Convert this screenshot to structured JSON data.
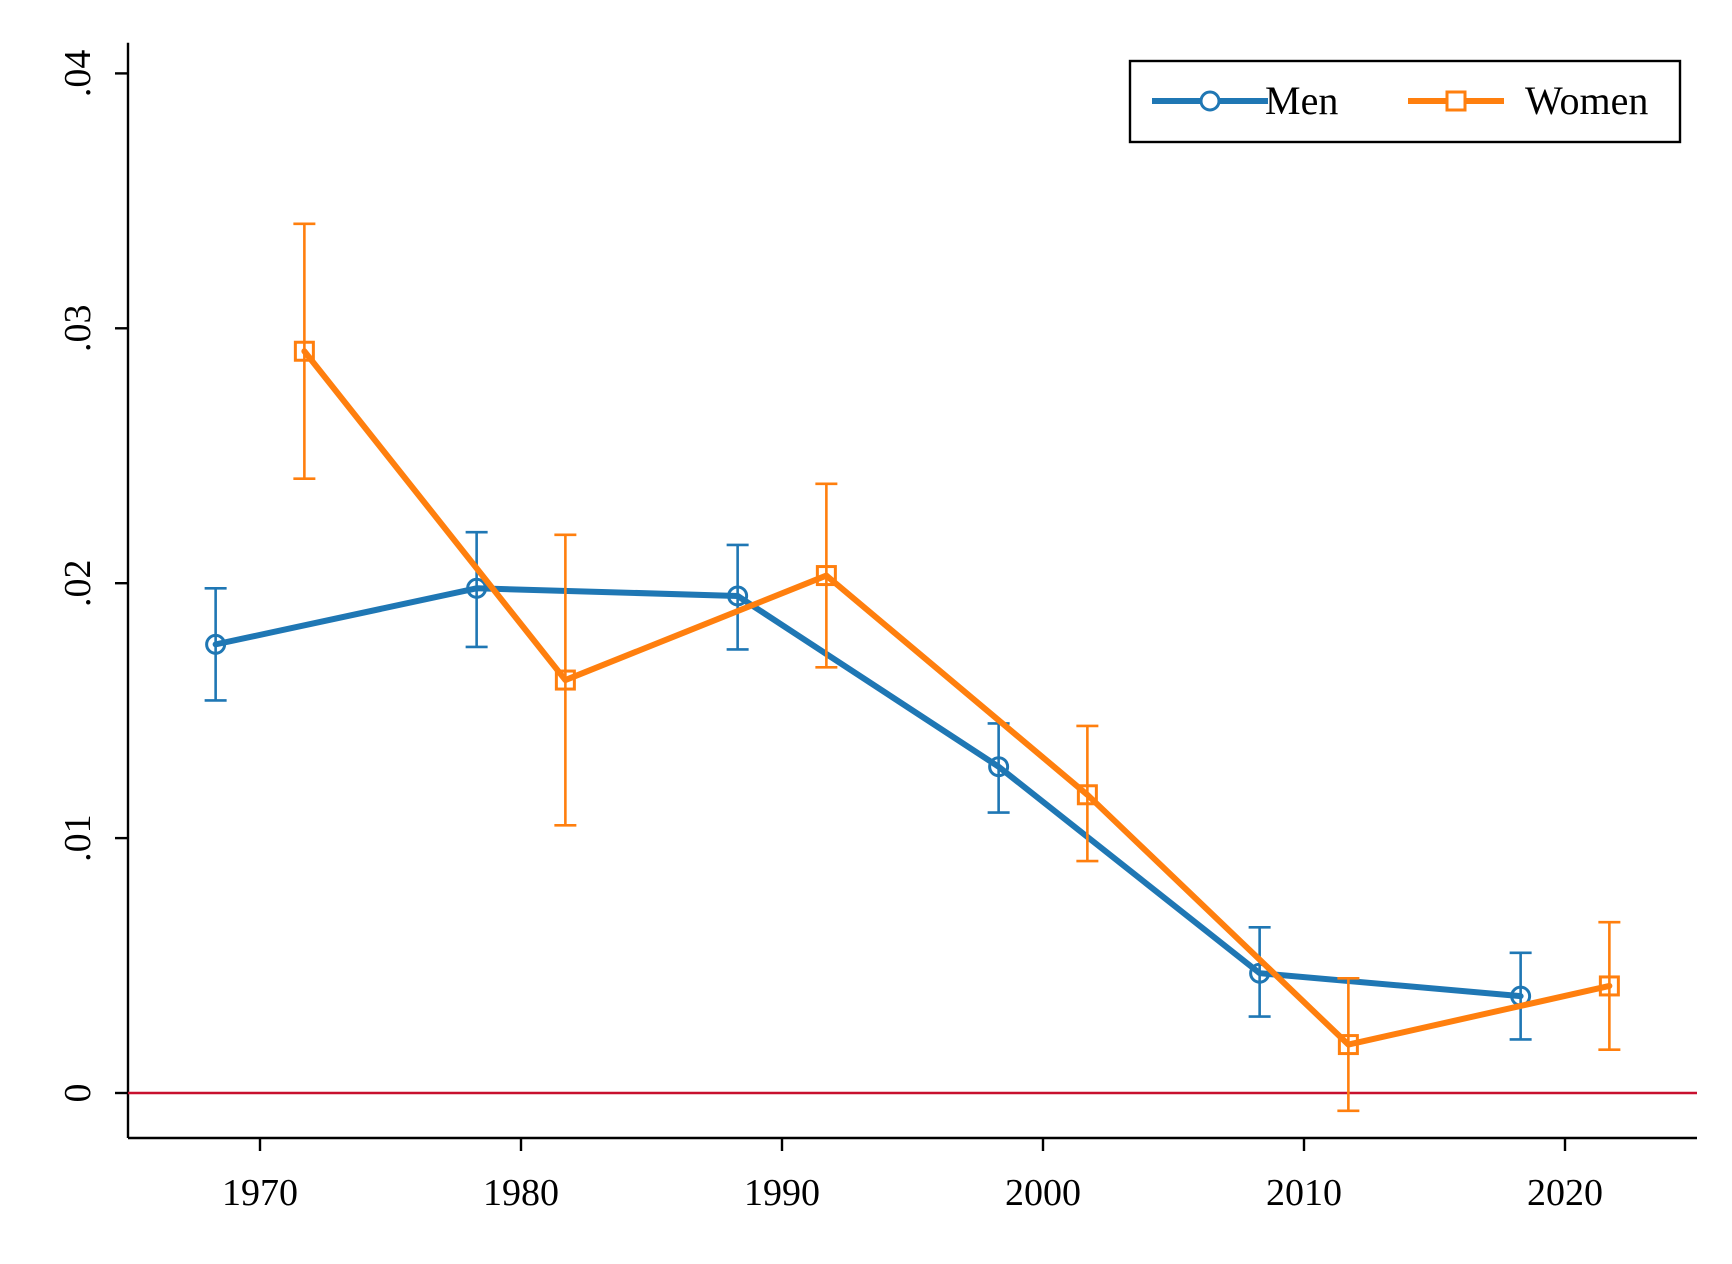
{
  "chart_data": {
    "type": "line",
    "title": "",
    "xlabel": "",
    "ylabel": "",
    "xlim": [
      1965,
      2025
    ],
    "ylim": [
      -0.00185,
      0.0412
    ],
    "x_ticks": [
      1970,
      1980,
      1990,
      2000,
      2010,
      2020
    ],
    "x_tick_labels": [
      "1970",
      "1980",
      "1990",
      "2000",
      "2010",
      "2020"
    ],
    "y_ticks": [
      0,
      0.01,
      0.02,
      0.03,
      0.04
    ],
    "y_tick_labels": [
      "0",
      ".01",
      ".02",
      ".03",
      ".04"
    ],
    "grid": false,
    "legend_position": "top-right",
    "reference_line": {
      "y": 0,
      "color": "#c8102e"
    },
    "series": [
      {
        "name": "Men",
        "color": "#1f77b4",
        "marker": "circle",
        "x": [
          1968.3,
          1978.3,
          1988.3,
          1998.3,
          2008.3,
          2018.3
        ],
        "y": [
          0.0176,
          0.0198,
          0.0195,
          0.0128,
          0.0047,
          0.0038
        ],
        "ci_low": [
          0.0154,
          0.0175,
          0.0174,
          0.011,
          0.003,
          0.0021
        ],
        "ci_high": [
          0.0198,
          0.022,
          0.0215,
          0.0145,
          0.0065,
          0.0055
        ]
      },
      {
        "name": "Women",
        "color": "#ff7f0e",
        "marker": "square",
        "x": [
          1971.7,
          1981.7,
          1991.7,
          2001.7,
          2011.7,
          2021.7
        ],
        "y": [
          0.0291,
          0.0162,
          0.0203,
          0.0117,
          0.0019,
          0.0042
        ],
        "ci_low": [
          0.0241,
          0.0105,
          0.0167,
          0.0091,
          -0.0007,
          0.0017
        ],
        "ci_high": [
          0.0341,
          0.0219,
          0.0239,
          0.0144,
          0.0045,
          0.0067
        ]
      }
    ]
  }
}
